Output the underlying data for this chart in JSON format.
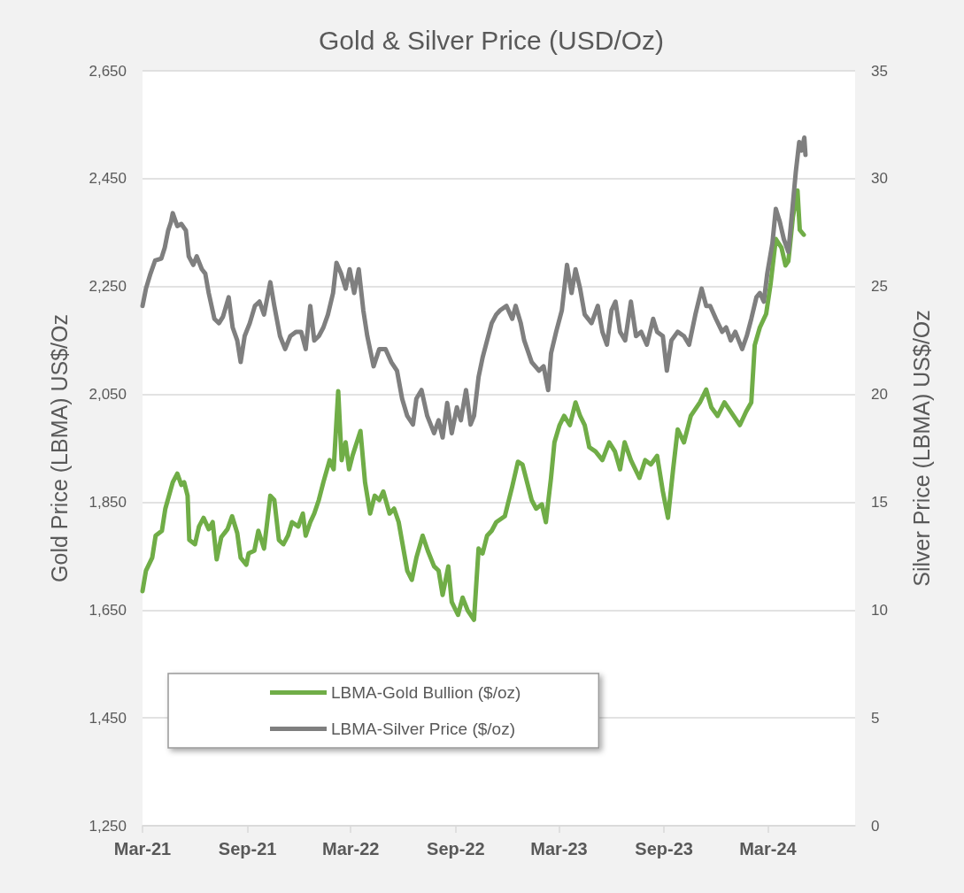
{
  "chart_data": {
    "type": "line",
    "title": "Gold & Silver Price (USD/Oz)",
    "ylabel": "Gold Price (LBMA) US$/Oz",
    "y2label": "Silver Price (LBMA) US$/Oz",
    "xlim": [
      "2021-03-01",
      "2024-08-01"
    ],
    "xticks": [
      {
        "value": "2021-03-01",
        "label": "Mar-21"
      },
      {
        "value": "2021-09-01",
        "label": "Sep-21"
      },
      {
        "value": "2022-03-01",
        "label": "Mar-22"
      },
      {
        "value": "2022-09-01",
        "label": "Sep-22"
      },
      {
        "value": "2023-03-01",
        "label": "Mar-23"
      },
      {
        "value": "2023-09-01",
        "label": "Sep-23"
      },
      {
        "value": "2024-03-01",
        "label": "Mar-24"
      }
    ],
    "ylim": [
      1250,
      2650
    ],
    "yticks": [
      {
        "value": 1250,
        "label": "1,250"
      },
      {
        "value": 1450,
        "label": "1,450"
      },
      {
        "value": 1650,
        "label": "1,650"
      },
      {
        "value": 1850,
        "label": "1,850"
      },
      {
        "value": 2050,
        "label": "2,050"
      },
      {
        "value": 2250,
        "label": "2,250"
      },
      {
        "value": 2450,
        "label": "2,450"
      },
      {
        "value": 2650,
        "label": "2,650"
      }
    ],
    "y2lim": [
      0,
      35
    ],
    "y2ticks": [
      0,
      5,
      10,
      15,
      20,
      25,
      30,
      35
    ],
    "grid": "y",
    "legend": "bottom left",
    "marker": "none",
    "line_style": "solid",
    "series": [
      {
        "name": "LBMA-Gold Bullion ($/oz)",
        "color": "#70ad47",
        "x": [
          "2021-03-01",
          "2021-03-07",
          "2021-03-18",
          "2021-03-24",
          "2021-04-04",
          "2021-04-10",
          "2021-04-23",
          "2021-05-01",
          "2021-05-08",
          "2021-05-13",
          "2021-05-19",
          "2021-05-22",
          "2021-06-01",
          "2021-06-08",
          "2021-06-16",
          "2021-06-25",
          "2021-07-02",
          "2021-07-09",
          "2021-07-17",
          "2021-07-28",
          "2021-08-05",
          "2021-08-14",
          "2021-08-20",
          "2021-08-30",
          "2021-09-03",
          "2021-09-13",
          "2021-09-20",
          "2021-09-30",
          "2021-10-11",
          "2021-10-18",
          "2021-10-26",
          "2021-11-03",
          "2021-11-11",
          "2021-11-18",
          "2021-11-29",
          "2021-12-07",
          "2021-12-12",
          "2021-12-20",
          "2021-12-27",
          "2022-01-04",
          "2022-01-12",
          "2022-01-23",
          "2022-01-30",
          "2022-02-07",
          "2022-02-13",
          "2022-02-20",
          "2022-02-26",
          "2022-03-04",
          "2022-03-18",
          "2022-03-26",
          "2022-04-04",
          "2022-04-12",
          "2022-04-20",
          "2022-04-27",
          "2022-05-08",
          "2022-05-16",
          "2022-05-24",
          "2022-06-08",
          "2022-06-16",
          "2022-06-24",
          "2022-07-05",
          "2022-07-14",
          "2022-07-25",
          "2022-08-02",
          "2022-08-09",
          "2022-08-19",
          "2022-08-25",
          "2022-09-05",
          "2022-09-13",
          "2022-09-22",
          "2022-10-03",
          "2022-10-11",
          "2022-10-18",
          "2022-10-26",
          "2022-11-03",
          "2022-11-11",
          "2022-11-26",
          "2022-12-09",
          "2022-12-19",
          "2022-12-27",
          "2023-01-04",
          "2023-01-12",
          "2023-01-20",
          "2023-01-30",
          "2023-02-06",
          "2023-02-15",
          "2023-02-21",
          "2023-03-02",
          "2023-03-10",
          "2023-03-20",
          "2023-03-30",
          "2023-04-07",
          "2023-04-15",
          "2023-04-23",
          "2023-05-04",
          "2023-05-16",
          "2023-05-28",
          "2023-06-07",
          "2023-06-16",
          "2023-06-24",
          "2023-07-05",
          "2023-07-20",
          "2023-07-30",
          "2023-08-09",
          "2023-08-20",
          "2023-08-30",
          "2023-09-08",
          "2023-09-17",
          "2023-09-25",
          "2023-10-06",
          "2023-10-18",
          "2023-11-03",
          "2023-11-14",
          "2023-11-23",
          "2023-12-04",
          "2023-12-16",
          "2023-12-27",
          "2024-01-12",
          "2024-01-23",
          "2024-02-01",
          "2024-02-07",
          "2024-02-16",
          "2024-02-27",
          "2024-03-06",
          "2024-03-15",
          "2024-03-25",
          "2024-04-01",
          "2024-04-06",
          "2024-04-14",
          "2024-04-22",
          "2024-04-26",
          "2024-05-03"
        ],
        "values": [
          1685,
          1723,
          1747,
          1788,
          1797,
          1838,
          1887,
          1903,
          1882,
          1887,
          1862,
          1780,
          1772,
          1805,
          1821,
          1800,
          1813,
          1744,
          1785,
          1800,
          1824,
          1793,
          1747,
          1734,
          1755,
          1760,
          1797,
          1764,
          1862,
          1854,
          1780,
          1772,
          1788,
          1813,
          1805,
          1829,
          1788,
          1813,
          1829,
          1854,
          1887,
          1928,
          1911,
          2056,
          1928,
          1961,
          1911,
          1936,
          1982,
          1887,
          1829,
          1862,
          1854,
          1870,
          1829,
          1838,
          1813,
          1723,
          1706,
          1747,
          1788,
          1760,
          1731,
          1723,
          1678,
          1731,
          1665,
          1641,
          1673,
          1649,
          1632,
          1764,
          1755,
          1788,
          1797,
          1813,
          1824,
          1879,
          1925,
          1920,
          1887,
          1854,
          1838,
          1846,
          1813,
          1895,
          1961,
          1993,
          2010,
          1993,
          2035,
          2010,
          1993,
          1952,
          1944,
          1928,
          1961,
          1944,
          1911,
          1961,
          1928,
          1895,
          1928,
          1920,
          1936,
          1870,
          1821,
          1911,
          1985,
          1961,
          2010,
          2035,
          2059,
          2026,
          2010,
          2035,
          2018,
          1993,
          2018,
          2035,
          2141,
          2174,
          2199,
          2256,
          2338,
          2322,
          2289,
          2297,
          2379,
          2428,
          2355,
          2346
        ]
      },
      {
        "name": "LBMA-Silver Price ($/oz)",
        "color": "#7f7f7f",
        "axis": "y2",
        "x": [
          "2021-03-01",
          "2021-03-07",
          "2021-03-15",
          "2021-03-23",
          "2021-04-03",
          "2021-04-09",
          "2021-04-15",
          "2021-04-20",
          "2021-04-23",
          "2021-05-01",
          "2021-05-08",
          "2021-05-16",
          "2021-05-21",
          "2021-05-29",
          "2021-06-04",
          "2021-06-13",
          "2021-06-19",
          "2021-06-25",
          "2021-07-05",
          "2021-07-13",
          "2021-07-20",
          "2021-07-30",
          "2021-08-06",
          "2021-08-14",
          "2021-08-20",
          "2021-08-27",
          "2021-09-05",
          "2021-09-14",
          "2021-09-22",
          "2021-09-30",
          "2021-10-11",
          "2021-10-18",
          "2021-10-28",
          "2021-11-06",
          "2021-11-15",
          "2021-11-25",
          "2021-12-04",
          "2021-12-12",
          "2021-12-20",
          "2021-12-27",
          "2022-01-04",
          "2022-01-12",
          "2022-01-20",
          "2022-01-29",
          "2022-02-04",
          "2022-02-12",
          "2022-02-20",
          "2022-02-27",
          "2022-03-07",
          "2022-03-15",
          "2022-03-23",
          "2022-03-30",
          "2022-04-10",
          "2022-04-20",
          "2022-05-01",
          "2022-05-11",
          "2022-05-21",
          "2022-05-30",
          "2022-06-08",
          "2022-06-18",
          "2022-06-24",
          "2022-07-03",
          "2022-07-13",
          "2022-07-25",
          "2022-08-02",
          "2022-08-09",
          "2022-08-17",
          "2022-08-25",
          "2022-09-03",
          "2022-09-10",
          "2022-09-19",
          "2022-09-27",
          "2022-10-03",
          "2022-10-11",
          "2022-10-18",
          "2022-10-26",
          "2022-11-03",
          "2022-11-11",
          "2022-11-18",
          "2022-11-29",
          "2022-12-09",
          "2022-12-15",
          "2022-12-24",
          "2022-12-30",
          "2023-01-12",
          "2023-01-25",
          "2023-02-02",
          "2023-02-10",
          "2023-02-15",
          "2023-02-24",
          "2023-03-06",
          "2023-03-15",
          "2023-03-23",
          "2023-03-30",
          "2023-04-07",
          "2023-04-15",
          "2023-04-27",
          "2023-05-08",
          "2023-05-16",
          "2023-05-24",
          "2023-06-01",
          "2023-06-08",
          "2023-06-16",
          "2023-06-25",
          "2023-07-05",
          "2023-07-14",
          "2023-07-23",
          "2023-08-02",
          "2023-08-13",
          "2023-08-20",
          "2023-08-30",
          "2023-09-06",
          "2023-09-14",
          "2023-09-25",
          "2023-10-06",
          "2023-10-15",
          "2023-10-26",
          "2023-11-06",
          "2023-11-14",
          "2023-11-21",
          "2023-12-01",
          "2023-12-12",
          "2023-12-19",
          "2023-12-27",
          "2024-01-04",
          "2024-01-16",
          "2024-01-24",
          "2024-02-01",
          "2024-02-10",
          "2024-02-16",
          "2024-02-23",
          "2024-02-29",
          "2024-03-09",
          "2024-03-15",
          "2024-03-22",
          "2024-03-29",
          "2024-04-06",
          "2024-04-11",
          "2024-04-19",
          "2024-04-25",
          "2024-04-29",
          "2024-05-04",
          "2024-05-06"
        ],
        "values": [
          24.1,
          24.9,
          25.6,
          26.2,
          26.3,
          26.8,
          27.6,
          28.0,
          28.4,
          27.8,
          27.9,
          27.6,
          26.4,
          26.0,
          26.4,
          25.8,
          25.6,
          24.7,
          23.5,
          23.3,
          23.6,
          24.5,
          23.1,
          22.5,
          21.5,
          22.7,
          23.3,
          24.1,
          24.3,
          23.7,
          25.2,
          24.1,
          22.7,
          22.1,
          22.7,
          22.9,
          22.9,
          22.1,
          24.1,
          22.5,
          22.7,
          23.1,
          23.7,
          24.7,
          26.1,
          25.6,
          24.9,
          25.8,
          24.7,
          25.8,
          23.9,
          22.7,
          21.3,
          22.1,
          22.1,
          21.5,
          21.1,
          19.8,
          19.0,
          18.6,
          19.8,
          20.2,
          19.0,
          18.2,
          18.8,
          18.0,
          19.6,
          18.2,
          19.4,
          18.8,
          20.2,
          18.6,
          19.0,
          20.8,
          21.7,
          22.5,
          23.3,
          23.7,
          23.9,
          24.1,
          23.5,
          24.1,
          23.3,
          22.5,
          21.5,
          21.1,
          21.3,
          20.2,
          21.9,
          22.9,
          23.9,
          26.0,
          24.7,
          25.8,
          24.9,
          23.7,
          23.3,
          24.1,
          22.9,
          22.3,
          23.9,
          24.3,
          22.9,
          22.5,
          24.3,
          22.7,
          22.9,
          22.3,
          23.5,
          22.9,
          22.7,
          21.1,
          22.5,
          22.9,
          22.7,
          22.3,
          23.7,
          24.9,
          24.1,
          24.1,
          23.5,
          22.9,
          23.1,
          22.5,
          22.9,
          22.1,
          22.7,
          23.5,
          24.5,
          24.7,
          24.3,
          25.6,
          27.0,
          28.6,
          28.0,
          27.2,
          26.6,
          28.0,
          30.3,
          31.7,
          31.3,
          31.9,
          31.1
        ]
      }
    ]
  }
}
